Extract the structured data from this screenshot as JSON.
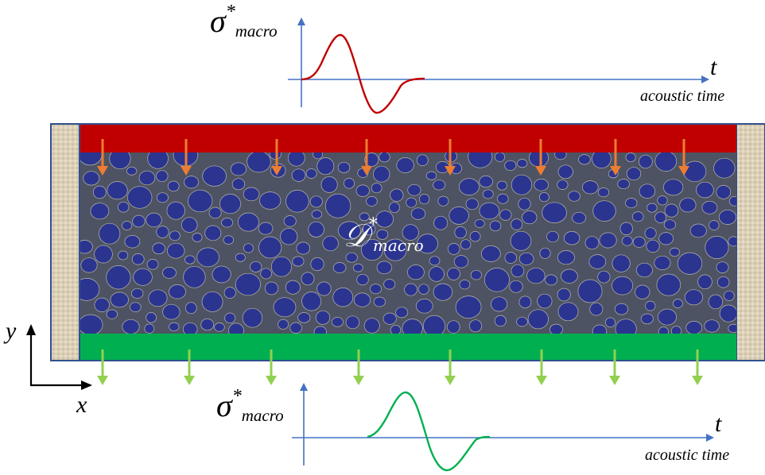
{
  "top_plot": {
    "symbol": "σ",
    "star": "*",
    "subscript": "macro",
    "t_label": "t",
    "time_label": "acoustic time",
    "curve_color": "#c00000"
  },
  "bottom_plot": {
    "symbol": "σ",
    "star": "*",
    "subscript": "macro",
    "t_label": "t",
    "time_label": "acoustic time",
    "curve_color": "#00b050"
  },
  "domain": {
    "symbol": "𝒟",
    "star": "*",
    "subscript": "macro"
  },
  "axes": {
    "y_label": "y",
    "x_label": "x"
  },
  "colors": {
    "top_plate": "#c00000",
    "bottom_plate": "#00b050",
    "grains": "#2b3590",
    "matrix": "#4e5363",
    "down_arrows_top": "#ed7d31",
    "down_arrows_bottom": "#92d050",
    "plot_axis": "#4472c4",
    "wall": "#d8ccb4",
    "frame": "#2f4f8f"
  }
}
